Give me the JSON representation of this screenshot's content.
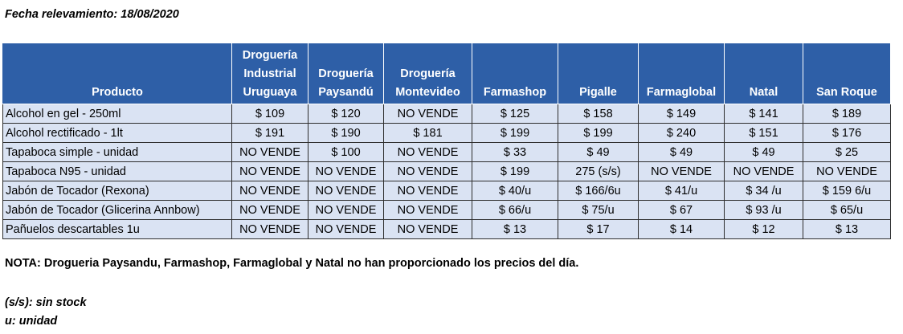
{
  "fecha": "Fecha relevamiento: 18/08/2020",
  "table": {
    "headers": [
      [
        "Producto"
      ],
      [
        "Droguería",
        "Industrial",
        "Uruguaya"
      ],
      [
        "Droguería",
        "Paysandú"
      ],
      [
        "Droguería",
        "Montevideo"
      ],
      [
        "Farmashop"
      ],
      [
        "Pigalle"
      ],
      [
        "Farmaglobal"
      ],
      [
        "Natal"
      ],
      [
        "San Roque"
      ]
    ],
    "rows": [
      [
        "Alcohol en gel  - 250ml",
        "$ 109",
        "$ 120",
        "NO VENDE",
        "$ 125",
        "$ 158",
        "$ 149",
        "$ 141",
        "$ 189"
      ],
      [
        "Alcohol rectificado - 1lt",
        "$ 191",
        "$ 190",
        "$ 181",
        "$ 199",
        "$ 199",
        "$ 240",
        "$ 151",
        "$ 176"
      ],
      [
        "Tapaboca simple - unidad",
        "NO VENDE",
        "$ 100",
        "NO VENDE",
        "$ 33",
        "$ 49",
        "$ 49",
        "$ 49",
        "$ 25"
      ],
      [
        "Tapaboca N95 - unidad",
        "NO VENDE",
        "NO VENDE",
        "NO VENDE",
        "$ 199",
        "275 (s/s)",
        "NO VENDE",
        "NO VENDE",
        "NO VENDE"
      ],
      [
        "Jabón de Tocador (Rexona)",
        "NO VENDE",
        "NO VENDE",
        "NO VENDE",
        "$ 40/u",
        "$ 166/6u",
        "$ 41/u",
        "$ 34 /u",
        "$ 159 6/u"
      ],
      [
        "Jabón de Tocador (Glicerina Annbow)",
        "NO VENDE",
        "NO VENDE",
        "NO VENDE",
        "$ 66/u",
        "$ 75/u",
        "$ 67",
        "$ 93 /u",
        "$ 65/u"
      ],
      [
        "Pañuelos descartables 1u",
        "NO VENDE",
        "NO VENDE",
        "NO VENDE",
        "$ 13",
        "$ 17",
        "$ 14",
        "$ 12",
        "$ 13"
      ]
    ]
  },
  "nota": "NOTA: Drogueria Paysandu, Farmashop, Farmaglobal y Natal no han proporcionado los precios del día.",
  "leyenda": {
    "ss": "(s/s): sin stock",
    "u": "u: unidad"
  },
  "colors": {
    "header_bg": "#2e5fa7",
    "header_text": "#ffffff",
    "cell_bg": "#dae3f3",
    "border": "#2e2e2e"
  }
}
